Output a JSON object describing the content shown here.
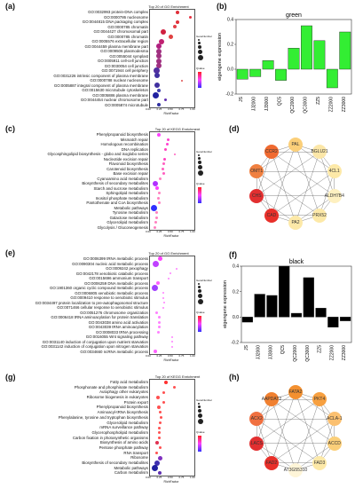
{
  "panels": {
    "a": {
      "label": "(a)",
      "title": "Top 20 of GO Enrichment",
      "xlabel": "RichFactor",
      "xticks": [
        "0.00",
        "0.25",
        "0.50",
        "0.75",
        "1.00"
      ],
      "terms": [
        "GO:0032993 protein-DNA complex",
        "GO:0000786 nucleosome",
        "GO:0044815 DNA packaging complex",
        "GO:0000785 chromatin",
        "GO:0044427 chromosomal part",
        "GO:0000785 chromatin",
        "GO:0005576 extracellular region",
        "GO:0044459 plasma membrane part",
        "GO:0009506 plasmodesma",
        "GO:0055044 symplast",
        "GO:0005911 cell-cell junction",
        "GO:0030054 cell junction",
        "GO:0071944 cell periphery",
        "GO:0031226 intrinsic component of plasma membrane",
        "GO:0000788 nuclear nucleosome",
        "GO:0005887 integral component of plasma membrane",
        "GO:0015630 microtubule cytoskeleton",
        "GO:0005886 plasma membrane",
        "GO:0044454 nuclear chromosome part",
        "GO:0005874 microtubule"
      ],
      "legend": [
        "GeneNumber",
        "Qvalue"
      ]
    },
    "c": {
      "label": "(c)",
      "title": "Top 20 of KEGG Enrichment",
      "xlabel": "RichFactor",
      "xticks": [
        "0.00",
        "0.25",
        "0.50",
        "0.75",
        "1.00"
      ],
      "terms": [
        "Phenylpropanoid biosynthesis",
        "Mismatch repair",
        "Homologous recombination",
        "DNA replication",
        "Glycosphingolipid biosynthesis - globo and isoglobo series",
        "Nucleotide excision repair",
        "Flavonoid biosynthesis",
        "Carotenoid biosynthesis",
        "Base excision repair",
        "Cyanoamino acid metabolism",
        "Biosynthesis of secondary metabolites",
        "Starch and sucrose metabolism",
        "Sphingolipid metabolism",
        "Inositol phosphate metabolism",
        "Pantothenate and CoA biosynthesis",
        "Metabolic pathways",
        "Tyrosine metabolism",
        "Galactose metabolism",
        "Glycerolipid metabolism",
        "Glycolysis / Gluconeogenesis"
      ],
      "legend": [
        "GeneNumber",
        "Qvalue"
      ]
    },
    "e": {
      "label": "(e)",
      "title": "Top 20 of GO Enrichment",
      "xlabel": "RichFactor",
      "xticks": [
        "0.00",
        "0.25",
        "0.50",
        "0.75",
        "1.00"
      ],
      "terms": [
        "GO:0006399 tRNA metabolic process",
        "GO:0090304 nucleic acid metabolic process",
        "GO:0009242 pexophagy",
        "GO:0042178 xenobiotic catabolic process",
        "GO:0015696 ammonium transport",
        "GO:0006259 DNA metabolic process",
        "GO:1901360 organic cyclic compound metabolic process",
        "GO:0006805 xenobiotic metabolic process",
        "GO:0009410 response to xenobiotic stimulus",
        "GO:0034497 protein localization to pre-autophagosomal structure",
        "GO:0071466 cellular response to xenobiotic stimulus",
        "GO:0051276 chromosome organization",
        "GO:0006418 tRNA aminoacylation for protein translation",
        "GO:0043038 amino acid activation",
        "GO:0043039 tRNA aminoacylation",
        "GO:0008033 tRNA processing",
        "GO:0016055 Wnt signaling pathway",
        "GO:0031140 induction of conjugation upon nutrient starvation",
        "GO:0031142 induction of conjugation upon nitrogen starvation",
        "GO:0034660 ncRNA metabolic process"
      ],
      "legend": [
        "GeneNumber",
        "Qvalue"
      ]
    },
    "g": {
      "label": "(g)",
      "title": "Top 20 of KEGG Enrichment",
      "xlabel": "RichFactor",
      "xticks": [
        "0.00",
        "0.25",
        "0.50",
        "0.75",
        "1.00"
      ],
      "terms": [
        "Fatty acid metabolism",
        "Phosphonate and phosphinate metabolism",
        "Autophagy other eukaryotes",
        "Ribosome biogenesis in eukaryotes",
        "Protein export",
        "Phenylpropanoid biosynthesis",
        "Aminoacyl-tRNA biosynthesis",
        "Phenylalanine, tyrosine and tryptophan biosynthesis",
        "Glycerolipid metabolism",
        "mRNA surveillance pathway",
        "Glycerophospholipid metabolism",
        "Carbon fixation in photosynthetic organisms",
        "Biosynthesis of amino acids",
        "Pentose phosphate pathway",
        "RNA transport",
        "Ribosome",
        "Biosynthesis of secondary metabolites",
        "Metabolic pathways",
        "Carbon metabolism"
      ],
      "legend": [
        "GeneNumber",
        "Qvalue"
      ]
    },
    "b": {
      "label": "(b)",
      "title": "green",
      "ylabel": "eigengene expression",
      "color": "#33ee33"
    },
    "f": {
      "label": "(f)",
      "title": "black",
      "ylabel": "eigengene expression",
      "color": "#000000"
    },
    "d": {
      "label": "(d)",
      "nodes": [
        "PAL",
        "BGLU21",
        "4CL1",
        "ALDH7B4",
        "PRX52",
        "PA2",
        "CAD",
        "CHS",
        "OMT1",
        "CCR2"
      ]
    },
    "h": {
      "label": "(h)",
      "nodes": [
        "FATA2",
        "PKT4",
        "ACLA-1",
        "ACCD",
        "FAD3",
        "AT3G55310",
        "FAD2",
        "LACS",
        "ACX2",
        "AAPDAT2"
      ]
    }
  },
  "chart_data": [
    {
      "type": "bar",
      "title": "green",
      "ylabel": "eigengene expression",
      "categories": [
        "JS",
        "JJ2000",
        "JJ3000",
        "QC5",
        "QC2000",
        "QC3000",
        "ZZ5",
        "ZZ2000",
        "ZZ3000"
      ],
      "values": [
        -0.08,
        -0.06,
        0.07,
        -0.09,
        0.17,
        0.35,
        0.23,
        -0.15,
        0.3
      ],
      "ylim": [
        -0.2,
        0.4
      ],
      "yticks": [
        "-0.2",
        "0.0",
        "0.2",
        "0.4"
      ],
      "color": "#33ee33"
    },
    {
      "type": "bar",
      "title": "black",
      "ylabel": "eigengene expression",
      "categories": [
        "JS",
        "JJ2000",
        "JJ3000",
        "QC5",
        "QC2000",
        "QC3000",
        "ZZ5",
        "ZZ2000",
        "ZZ3000"
      ],
      "values": [
        -0.04,
        0.18,
        0.17,
        0.4,
        0.03,
        0.31,
        0.07,
        -0.08,
        -0.03
      ],
      "ylim": [
        -0.2,
        0.4
      ],
      "yticks": [
        "-0.2",
        "0.0",
        "0.2",
        "0.4"
      ],
      "color": "#000000"
    }
  ]
}
